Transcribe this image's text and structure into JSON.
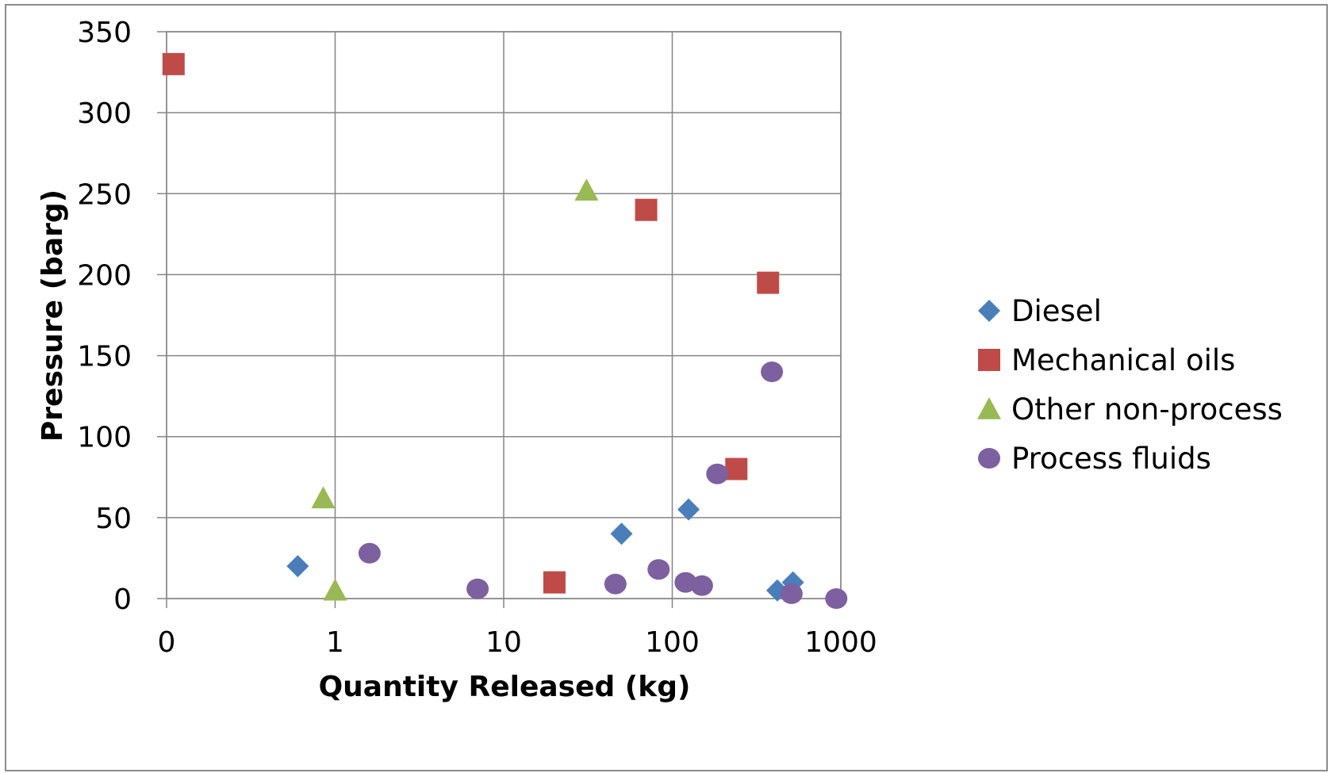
{
  "chart_data": {
    "type": "scatter",
    "title": "",
    "xlabel": "Quantity Released (kg)",
    "ylabel": "Pressure (barg)",
    "x_scale": "log",
    "x_ticks": [
      "0",
      "1",
      "10",
      "100",
      "1000"
    ],
    "y_ticks": [
      "0",
      "50",
      "100",
      "150",
      "200",
      "250",
      "300",
      "350"
    ],
    "ylim": [
      0,
      350
    ],
    "grid": true,
    "legend_position": "right",
    "series": [
      {
        "name": "Diesel",
        "marker": "diamond",
        "color": "#4a7ebb",
        "points": [
          {
            "x": 0.6,
            "y": 20
          },
          {
            "x": 50,
            "y": 40
          },
          {
            "x": 125,
            "y": 55
          },
          {
            "x": 420,
            "y": 5
          },
          {
            "x": 520,
            "y": 10
          }
        ]
      },
      {
        "name": "Mechanical oils",
        "marker": "square",
        "color": "#be4b48",
        "points": [
          {
            "x": 0.11,
            "y": 330
          },
          {
            "x": 20,
            "y": 10
          },
          {
            "x": 70,
            "y": 240
          },
          {
            "x": 240,
            "y": 80
          },
          {
            "x": 370,
            "y": 195
          }
        ]
      },
      {
        "name": "Other non-process",
        "marker": "triangle",
        "color": "#98b954",
        "points": [
          {
            "x": 0.85,
            "y": 62
          },
          {
            "x": 1.0,
            "y": 5
          },
          {
            "x": 31,
            "y": 252
          }
        ]
      },
      {
        "name": "Process fluids",
        "marker": "circle",
        "color": "#7d60a0",
        "points": [
          {
            "x": 1.6,
            "y": 28
          },
          {
            "x": 7,
            "y": 6
          },
          {
            "x": 46,
            "y": 9
          },
          {
            "x": 83,
            "y": 18
          },
          {
            "x": 120,
            "y": 10
          },
          {
            "x": 150,
            "y": 8
          },
          {
            "x": 185,
            "y": 77
          },
          {
            "x": 390,
            "y": 140
          },
          {
            "x": 510,
            "y": 3
          },
          {
            "x": 940,
            "y": 0
          }
        ]
      }
    ]
  }
}
